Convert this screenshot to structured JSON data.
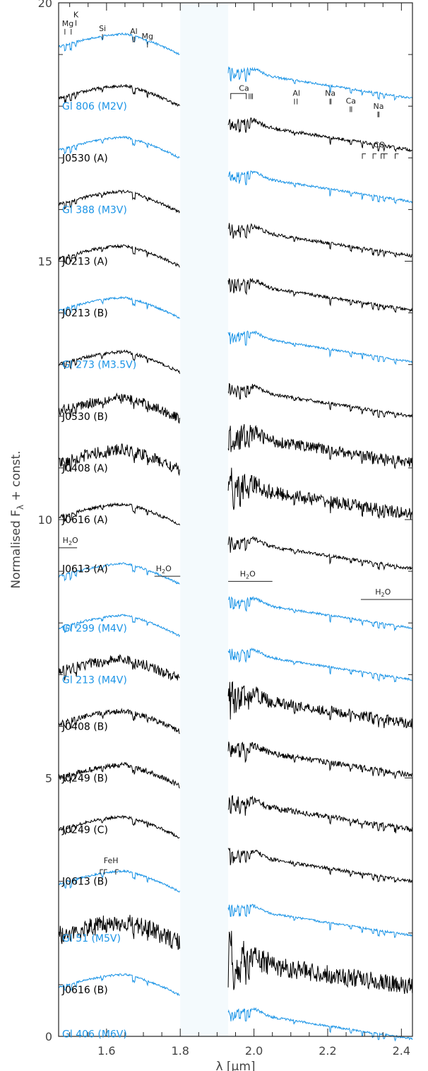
{
  "chart_data": {
    "type": "line",
    "xlabel": "λ [μm]",
    "ylabel": "Normalised F_λ + const.",
    "xlim": [
      1.47,
      2.43
    ],
    "ylim": [
      0,
      20
    ],
    "gap_band": [
      1.8,
      1.93
    ],
    "x_ticks": [
      "1.6",
      "1.8",
      "2.0",
      "2.2",
      "2.4"
    ],
    "y_ticks": [
      "0",
      "5",
      "10",
      "15",
      "20"
    ],
    "colors": {
      "reference": "#1b94e6",
      "target": "#000000",
      "gap": "#f4fafd"
    },
    "series": [
      {
        "name": "Gl 806 (M2V)",
        "kind": "reference",
        "offset": 19.15,
        "noise": 0.02,
        "label_y": 18.0
      },
      {
        "name": "J0530 (A)",
        "kind": "target",
        "offset": 18.15,
        "noise": 0.03,
        "label_y": 17.0
      },
      {
        "name": "Gl 388 (M3V)",
        "kind": "reference",
        "offset": 17.15,
        "noise": 0.02,
        "label_y": 16.0
      },
      {
        "name": "J0213 (A)",
        "kind": "target",
        "offset": 16.1,
        "noise": 0.03,
        "label_y": 15.0
      },
      {
        "name": "J0213 (B)",
        "kind": "target",
        "offset": 15.05,
        "noise": 0.03,
        "label_y": 14.0
      },
      {
        "name": "Gl 273 (M3.5V)",
        "kind": "reference",
        "offset": 14.05,
        "noise": 0.02,
        "label_y": 13.0
      },
      {
        "name": "J0530 (B)",
        "kind": "target",
        "offset": 13.0,
        "noise": 0.03,
        "label_y": 12.0
      },
      {
        "name": "J0408 (A)",
        "kind": "target",
        "offset": 12.1,
        "noise": 0.1,
        "label_y": 11.0
      },
      {
        "name": "J0616 (A)",
        "kind": "target",
        "offset": 11.1,
        "noise": 0.12,
        "label_y": 10.0
      },
      {
        "name": "J0613 (A)",
        "kind": "target",
        "offset": 10.05,
        "noise": 0.03,
        "label_y": 9.05
      },
      {
        "name": "Gl 299 (M4V)",
        "kind": "reference",
        "offset": 8.9,
        "noise": 0.02,
        "label_y": 7.9
      },
      {
        "name": "Gl 213 (M4V)",
        "kind": "reference",
        "offset": 7.9,
        "noise": 0.02,
        "label_y": 6.9
      },
      {
        "name": "J0408 (B)",
        "kind": "target",
        "offset": 7.05,
        "noise": 0.1,
        "label_y": 6.0
      },
      {
        "name": "J0249 (B)",
        "kind": "target",
        "offset": 6.05,
        "noise": 0.05,
        "label_y": 5.0
      },
      {
        "name": "J0249 (C)",
        "kind": "target",
        "offset": 5.0,
        "noise": 0.05,
        "label_y": 4.0
      },
      {
        "name": "J0613 (B)",
        "kind": "target",
        "offset": 4.0,
        "noise": 0.03,
        "label_y": 3.0
      },
      {
        "name": "Gl 51 (M5V)",
        "kind": "reference",
        "offset": 2.95,
        "noise": 0.02,
        "label_y": 1.9
      },
      {
        "name": "J0616 (B)",
        "kind": "target",
        "offset": 1.95,
        "noise": 0.18,
        "label_y": 0.9
      },
      {
        "name": "Gl 406 (M6V)",
        "kind": "reference",
        "offset": 0.95,
        "noise": 0.02,
        "label_y": 0.05
      }
    ],
    "annotations": [
      {
        "text": "Mg",
        "x": 1.495,
        "y": 19.55,
        "ticks": [
          1.487,
          1.504
        ]
      },
      {
        "text": "K",
        "x": 1.517,
        "y": 19.72,
        "ticks": [
          1.517
        ]
      },
      {
        "text": "Si",
        "x": 1.589,
        "y": 19.45,
        "ticks": [
          1.589
        ]
      },
      {
        "text": "Al",
        "x": 1.674,
        "y": 19.4,
        "ticks": [
          1.672,
          1.676
        ]
      },
      {
        "text": "Mg",
        "x": 1.711,
        "y": 19.3,
        "ticks": [
          1.711
        ]
      },
      {
        "text": "Ca",
        "x": 1.973,
        "y": 18.3,
        "bracket": [
          1.937,
          1.979
        ],
        "ticks": [
          1.987,
          1.992,
          1.996
        ]
      },
      {
        "text": "Al",
        "x": 2.115,
        "y": 18.2,
        "ticks": [
          2.11,
          2.117
        ]
      },
      {
        "text": "Na",
        "x": 2.207,
        "y": 18.2,
        "ticks": [
          2.206,
          2.209
        ]
      },
      {
        "text": "Ca",
        "x": 2.263,
        "y": 18.05,
        "ticks": [
          2.261,
          2.265
        ]
      },
      {
        "text": "Na",
        "x": 2.338,
        "y": 17.95,
        "ticks": [
          2.336,
          2.339
        ]
      },
      {
        "text": "CO",
        "x": 2.34,
        "y": 17.2,
        "co_heads": [
          2.294,
          2.323,
          2.345,
          2.353,
          2.383
        ]
      },
      {
        "text": "H2O",
        "x": 1.502,
        "y": 9.55,
        "hline": [
          1.47,
          1.52
        ]
      },
      {
        "text": "H2O",
        "x": 1.755,
        "y": 9.0,
        "hline": [
          1.73,
          1.8
        ]
      },
      {
        "text": "H2O",
        "x": 1.983,
        "y": 8.9,
        "hline": [
          1.93,
          2.05
        ]
      },
      {
        "text": "H2O",
        "x": 2.35,
        "y": 8.55,
        "hline": [
          2.29,
          2.43
        ]
      },
      {
        "text": "FeH",
        "x": 1.612,
        "y": 3.35,
        "feh_heads": [
          1.583,
          1.594,
          1.625
        ]
      }
    ]
  }
}
